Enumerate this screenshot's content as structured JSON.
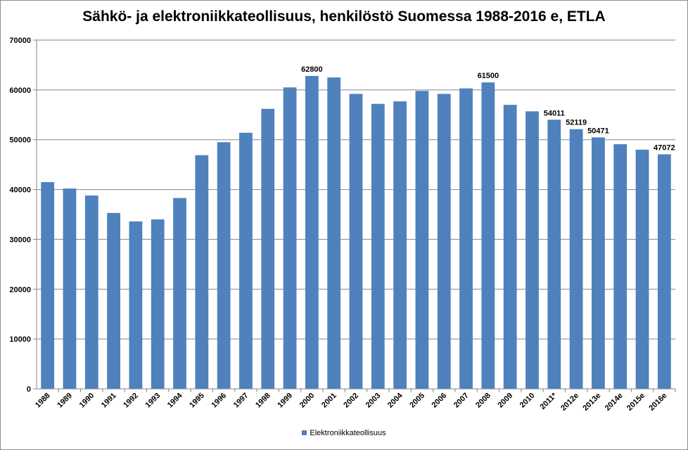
{
  "chart_data": {
    "type": "bar",
    "title": "Sähkö- ja elektroniikkateollisuus, henkilöstö Suomessa 1988-2016 e, ETLA",
    "xlabel": "",
    "ylabel": "",
    "ylim": [
      0,
      70000
    ],
    "yticks": [
      "0",
      "10000",
      "20000",
      "30000",
      "40000",
      "50000",
      "60000",
      "70000"
    ],
    "grid": true,
    "legend_position": "bottom",
    "bar_color": "#4f81bd",
    "categories": [
      "1988",
      "1989",
      "1990",
      "1991",
      "1992",
      "1993",
      "1994",
      "1995",
      "1996",
      "1997",
      "1998",
      "1999",
      "2000",
      "2001",
      "2002",
      "2003",
      "2004",
      "2005",
      "2006",
      "2007",
      "2008",
      "2009",
      "2010",
      "2011*",
      "2012e",
      "2013e",
      "2014e",
      "2015e",
      "2016e"
    ],
    "series": [
      {
        "name": "Elektroniikkateollisuus",
        "values": [
          41500,
          40200,
          38800,
          35300,
          33600,
          34000,
          38300,
          46900,
          49500,
          51400,
          56200,
          60500,
          62800,
          62500,
          59200,
          57200,
          57700,
          59800,
          59200,
          60300,
          61500,
          57000,
          55700,
          54011,
          52119,
          50471,
          49100,
          48000,
          47072
        ]
      }
    ],
    "data_labels": [
      {
        "category": "2000",
        "text": "62800"
      },
      {
        "category": "2008",
        "text": "61500"
      },
      {
        "category": "2011*",
        "text": "54011"
      },
      {
        "category": "2012e",
        "text": "52119"
      },
      {
        "category": "2013e",
        "text": "50471"
      },
      {
        "category": "2016e",
        "text": "47072"
      }
    ]
  }
}
